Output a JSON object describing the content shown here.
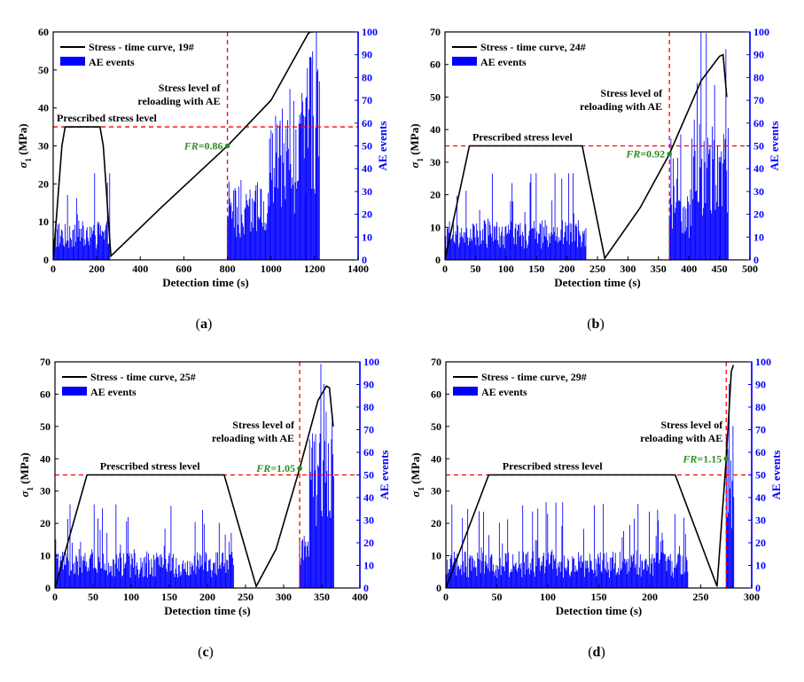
{
  "chart_data": [
    {
      "type": "line",
      "panel_label": "a",
      "specimen": "19#",
      "legend": {
        "line_label": "Stress - time curve, 19#",
        "bar_label": "AE events"
      },
      "xlabel": "Detection time (s)",
      "ylabel_left": "σ",
      "ylabel_left_sub": "1",
      "ylabel_left_unit": " (MPa)",
      "ylabel_right": "AE events",
      "xlim": [
        0,
        1400
      ],
      "xticks": [
        0,
        200,
        400,
        600,
        800,
        1000,
        1200,
        1400
      ],
      "ylim_left": [
        0,
        60
      ],
      "yticks_left": [
        0,
        10,
        20,
        30,
        40,
        50,
        60
      ],
      "ylim_right": [
        0,
        100
      ],
      "yticks_right": [
        0,
        10,
        20,
        30,
        40,
        50,
        60,
        70,
        80,
        90,
        100
      ],
      "prescribed_stress_level": 35,
      "prescribed_label": "Prescribed stress level",
      "reload_time": 800,
      "reload_label_1": "Stress level of",
      "reload_label_2": "reloading with AE",
      "fr_label": "FR",
      "fr_value": "=0.86",
      "fr_point": [
        800,
        30
      ],
      "stress_curve": {
        "x": [
          0,
          40,
          55,
          215,
          230,
          265,
          500,
          800,
          1000,
          1170,
          1180,
          1195
        ],
        "y": [
          0,
          30,
          35,
          35,
          30,
          1,
          14,
          30,
          42,
          59.5,
          60,
          60
        ]
      },
      "ae_segments": [
        {
          "x0": 0,
          "x1": 260,
          "mean": 14,
          "peak": 38
        },
        {
          "x0": 800,
          "x1": 990,
          "mean": 26,
          "peak": 35
        },
        {
          "x0": 990,
          "x1": 1160,
          "mean": 56,
          "peak": 75
        },
        {
          "x0": 1160,
          "x1": 1225,
          "mean": 75,
          "peak": 100
        }
      ]
    },
    {
      "type": "line",
      "panel_label": "b",
      "specimen": "24#",
      "legend": {
        "line_label": "Stress - time curve, 24#",
        "bar_label": "AE events"
      },
      "xlabel": "Detection time (s)",
      "ylabel_left": "σ",
      "ylabel_left_sub": "1",
      "ylabel_left_unit": " (MPa)",
      "ylabel_right": "AE events",
      "xlim": [
        0,
        500
      ],
      "xticks": [
        0,
        50,
        100,
        150,
        200,
        250,
        300,
        350,
        400,
        450,
        500
      ],
      "ylim_left": [
        0,
        70
      ],
      "yticks_left": [
        0,
        10,
        20,
        30,
        40,
        50,
        60,
        70
      ],
      "ylim_right": [
        0,
        100
      ],
      "yticks_right": [
        0,
        10,
        20,
        30,
        40,
        50,
        60,
        70,
        80,
        90,
        100
      ],
      "prescribed_stress_level": 35,
      "prescribed_label": "Prescribed stress level",
      "reload_time": 368,
      "reload_label_1": "Stress level of",
      "reload_label_2": "reloading with AE",
      "fr_label": "FR",
      "fr_value": "=0.92",
      "fr_point": [
        368,
        32.5
      ],
      "stress_curve": {
        "x": [
          0,
          40,
          225,
          262,
          320,
          368,
          420,
          450,
          456,
          462
        ],
        "y": [
          0,
          35,
          35,
          0.5,
          16,
          32.5,
          55,
          62.5,
          63,
          50
        ]
      },
      "ae_segments": [
        {
          "x0": 0,
          "x1": 232,
          "mean": 14,
          "peak": 38
        },
        {
          "x0": 368,
          "x1": 405,
          "mean": 25,
          "peak": 55
        },
        {
          "x0": 405,
          "x1": 465,
          "mean": 50,
          "peak": 100
        }
      ]
    },
    {
      "type": "line",
      "panel_label": "c",
      "specimen": "25#",
      "legend": {
        "line_label": "Stress - time curve, 25#",
        "bar_label": "AE events"
      },
      "xlabel": "Detection time (s)",
      "ylabel_left": "σ",
      "ylabel_left_sub": "1",
      "ylabel_left_unit": " (MPa)",
      "ylabel_right": "AE events",
      "xlim": [
        0,
        400
      ],
      "xticks": [
        0,
        50,
        100,
        150,
        200,
        250,
        300,
        350,
        400
      ],
      "ylim_left": [
        0,
        70
      ],
      "yticks_left": [
        0,
        10,
        20,
        30,
        40,
        50,
        60,
        70
      ],
      "ylim_right": [
        0,
        100
      ],
      "yticks_right": [
        0,
        10,
        20,
        30,
        40,
        50,
        60,
        70,
        80,
        90,
        100
      ],
      "prescribed_stress_level": 35,
      "prescribed_label": "Prescribed stress level",
      "reload_time": 321,
      "reload_label_1": "Stress level of",
      "reload_label_2": "reloading with AE",
      "fr_label": "FR",
      "fr_value": "=1.05",
      "fr_point": [
        321,
        37
      ],
      "stress_curve": {
        "x": [
          0,
          42,
          222,
          264,
          290,
          321,
          345,
          356,
          360,
          365
        ],
        "y": [
          0,
          35,
          35,
          0.5,
          12,
          37,
          58,
          62.5,
          62,
          50
        ]
      },
      "ae_segments": [
        {
          "x0": 0,
          "x1": 235,
          "mean": 13,
          "peak": 37
        },
        {
          "x0": 321,
          "x1": 334,
          "mean": 20,
          "peak": 35
        },
        {
          "x0": 334,
          "x1": 366,
          "mean": 55,
          "peak": 100
        }
      ]
    },
    {
      "type": "line",
      "panel_label": "d",
      "specimen": "29#",
      "legend": {
        "line_label": "Stress - time curve, 29#",
        "bar_label": "AE events"
      },
      "xlabel": "Detection time (s)",
      "ylabel_left": "σ",
      "ylabel_left_sub": "1",
      "ylabel_left_unit": " (MPa)",
      "ylabel_right": "AE events",
      "xlim": [
        0,
        300
      ],
      "xticks": [
        0,
        50,
        100,
        150,
        200,
        250,
        300
      ],
      "ylim_left": [
        0,
        70
      ],
      "yticks_left": [
        0,
        10,
        20,
        30,
        40,
        50,
        60,
        70
      ],
      "ylim_right": [
        0,
        100
      ],
      "yticks_right": [
        0,
        10,
        20,
        30,
        40,
        50,
        60,
        70,
        80,
        90,
        100
      ],
      "prescribed_stress_level": 35,
      "prescribed_label": "Prescribed stress level",
      "reload_time": 275,
      "reload_label_1": "Stress level of",
      "reload_label_2": "reloading with AE",
      "fr_label": "FR",
      "fr_value": "=1.15",
      "fr_point": [
        275,
        40
      ],
      "stress_curve": {
        "x": [
          0,
          42,
          225,
          266,
          275,
          280,
          282
        ],
        "y": [
          0,
          35,
          35,
          0.5,
          40,
          67,
          69
        ]
      },
      "ae_segments": [
        {
          "x0": 0,
          "x1": 238,
          "mean": 13,
          "peak": 38
        },
        {
          "x0": 275,
          "x1": 283,
          "mean": 60,
          "peak": 100
        }
      ]
    }
  ],
  "style": {
    "line_color": "#000000",
    "bar_color": "#0000ff",
    "dash_color": "#ff0000",
    "fr_color": "#2e8b20",
    "right_axis_color": "#0000ff"
  }
}
